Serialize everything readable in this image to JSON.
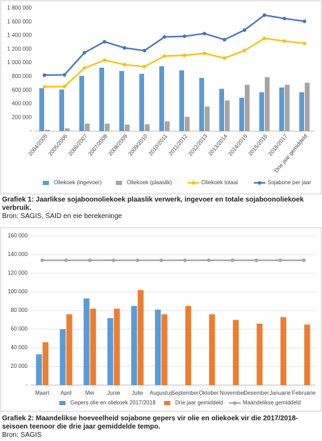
{
  "chart_data": [
    {
      "type": "bar",
      "categories": [
        "2004/2005",
        "2005/2006",
        "2006/2007",
        "2007/2008",
        "2008/2009",
        "2009/2010",
        "2010/2011",
        "2011/2012",
        "2012/2013",
        "2013/2014",
        "2014/2015",
        "2015/2016",
        "2016/2017",
        "Drie jaar gemiddeld"
      ],
      "series": [
        {
          "name": "Oliekoek (ingevoer)",
          "type": "bar",
          "color": "#5b9bd5",
          "values": [
            630000,
            610000,
            810000,
            930000,
            880000,
            840000,
            950000,
            890000,
            780000,
            620000,
            490000,
            570000,
            640000,
            570000
          ]
        },
        {
          "name": "Oliekoek (plaaslik)",
          "type": "bar",
          "color": "#a5a5a5",
          "values": [
            20000,
            40000,
            110000,
            110000,
            95000,
            100000,
            145000,
            210000,
            360000,
            450000,
            680000,
            790000,
            680000,
            710000
          ]
        },
        {
          "name": "Oliekoek totaal",
          "type": "line",
          "color": "#ffc000",
          "values": [
            650000,
            655000,
            925000,
            1040000,
            975000,
            945000,
            1100000,
            1110000,
            1140000,
            1070000,
            1180000,
            1360000,
            1320000,
            1285000
          ]
        },
        {
          "name": "Sojabone per jaar",
          "type": "line",
          "color": "#4472c4",
          "values": [
            820000,
            825000,
            1150000,
            1310000,
            1220000,
            1180000,
            1380000,
            1390000,
            1430000,
            1340000,
            1480000,
            1700000,
            1650000,
            1610000
          ]
        }
      ],
      "ylim": [
        0,
        1800000
      ],
      "yticks": [
        {
          "value": 0,
          "label": "-"
        },
        {
          "value": 200000,
          "label": "200 000"
        },
        {
          "value": 400000,
          "label": "400 000"
        },
        {
          "value": 600000,
          "label": "600 000"
        },
        {
          "value": 800000,
          "label": "800 000"
        },
        {
          "value": 1000000,
          "label": "1 000 000"
        },
        {
          "value": 1200000,
          "label": "1 200 000"
        },
        {
          "value": 1400000,
          "label": "1 400 000"
        },
        {
          "value": 1600000,
          "label": "1 600 000"
        },
        {
          "value": 1800000,
          "label": "1 800 000"
        }
      ],
      "grid": false,
      "legend": "bottom"
    },
    {
      "type": "bar",
      "categories": [
        "Maart",
        "April",
        "Mei",
        "Junie",
        "Julie",
        "Augustus",
        "September",
        "Oktober",
        "November",
        "Desember",
        "Januarie",
        "Februarie"
      ],
      "series": [
        {
          "name": "Gepers olie en oliekoek 2017/2018",
          "type": "bar",
          "color": "#5b9bd5",
          "values": [
            33000,
            60000,
            93000,
            72000,
            85000,
            81000,
            null,
            null,
            null,
            null,
            null,
            null
          ]
        },
        {
          "name": "Drie jaar gemiddeld",
          "type": "bar",
          "color": "#ed7d31",
          "values": [
            46000,
            76000,
            82000,
            82000,
            102000,
            76000,
            85000,
            76000,
            70000,
            66000,
            73000,
            65000
          ]
        },
        {
          "name": "Maandelikse gemiddeld",
          "type": "line",
          "color": "#a5a5a5",
          "values": [
            134000,
            134000,
            134000,
            134000,
            134000,
            134000,
            134000,
            134000,
            134000,
            134000,
            134000,
            134000
          ]
        }
      ],
      "ylim": [
        0,
        160000
      ],
      "yticks": [
        {
          "value": 0,
          "label": "-"
        },
        {
          "value": 20000,
          "label": "20 000"
        },
        {
          "value": 40000,
          "label": "40 000"
        },
        {
          "value": 60000,
          "label": "60 000"
        },
        {
          "value": 80000,
          "label": "80 000"
        },
        {
          "value": 100000,
          "label": "100 000"
        },
        {
          "value": 120000,
          "label": "120 000"
        },
        {
          "value": 140000,
          "label": "140 000"
        },
        {
          "value": 160000,
          "label": "160 000"
        }
      ],
      "grid": true,
      "legend": "bottom"
    }
  ],
  "captions": [
    {
      "title": "Grafiek 1: Jaarlikse sojaboonoliekoek plaaslik verwerk, ingevoer en totale sojaboonoliekoek verbruik.",
      "source": "Bron: SAGIS, SAID en eie berekeninge"
    },
    {
      "title": "Grafiek 2: Maandelikse hoeveelheid sojabone gepers vir olie en oliekoek vir die 2017/2018-seisoen teenoor die drie jaar gemiddelde tempo.",
      "source": "Bron: SAGIS"
    }
  ]
}
